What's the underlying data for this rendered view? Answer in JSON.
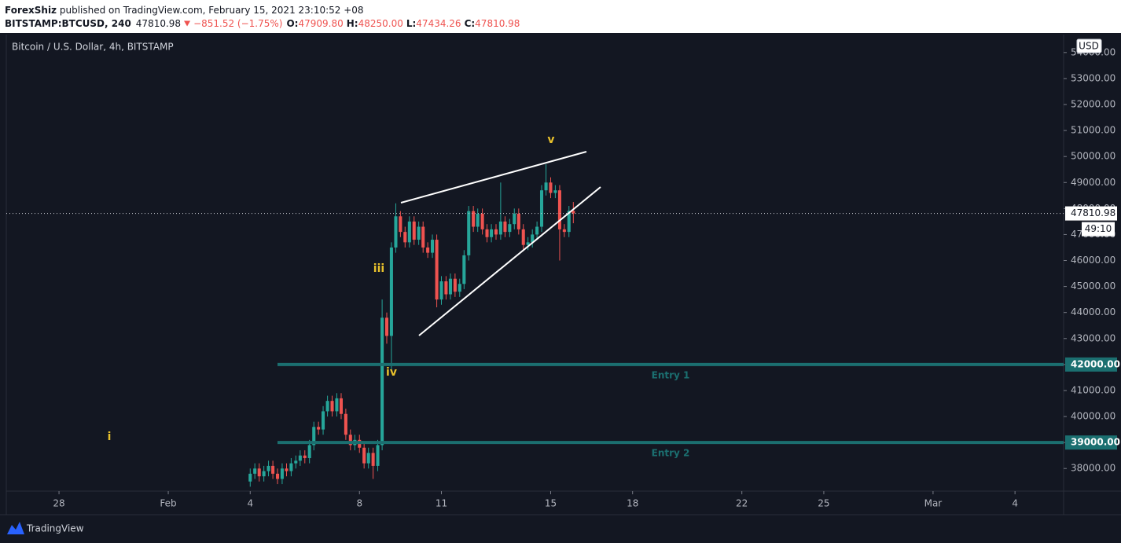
{
  "chart_data": {
    "type": "candlestick",
    "header": {
      "author": "ForexShiz",
      "published": " published on TradingView.com, February 15, 2021 23:10:52 +08",
      "symbol": "BITSTAMP:BTCUSD, 240",
      "last": "47810.98",
      "change": "−851.52 (−1.75%)",
      "ohlc": [
        {
          "label": "O:",
          "value": "47909.80"
        },
        {
          "label": "H:",
          "value": "48250.00"
        },
        {
          "label": "L:",
          "value": "47434.26"
        },
        {
          "label": "C:",
          "value": "47810.98"
        }
      ]
    },
    "legend": "Bitcoin / U.S. Dollar, 4h, BITSTAMP",
    "currency": "USD",
    "brand": "TradingView",
    "waves": [
      "i",
      "iii",
      "iv",
      "v"
    ],
    "up_color": "#26a69a",
    "down_color": "#ef5350",
    "xlim": [
      -1.93,
      36.78
    ],
    "ylim": [
      37130,
      54690
    ],
    "xticks": [
      {
        "value": 0,
        "label": "28"
      },
      {
        "value": 4,
        "label": "Feb"
      },
      {
        "value": 7,
        "label": "4"
      },
      {
        "value": 11,
        "label": "8"
      },
      {
        "value": 14,
        "label": "11"
      },
      {
        "value": 18,
        "label": "15"
      },
      {
        "value": 21,
        "label": "18"
      },
      {
        "value": 25,
        "label": "22"
      },
      {
        "value": 28,
        "label": "25"
      },
      {
        "value": 32,
        "label": "Mar"
      },
      {
        "value": 35,
        "label": "4"
      }
    ],
    "yticks": [
      {
        "value": 38000,
        "label": "38000.00"
      },
      {
        "value": 39000,
        "label": "39000.00"
      },
      {
        "value": 40000,
        "label": "40000.00"
      },
      {
        "value": 41000,
        "label": "41000.00"
      },
      {
        "value": 42000,
        "label": "42000.00"
      },
      {
        "value": 43000,
        "label": "43000.00"
      },
      {
        "value": 44000,
        "label": "44000.00"
      },
      {
        "value": 45000,
        "label": "45000.00"
      },
      {
        "value": 46000,
        "label": "46000.00"
      },
      {
        "value": 47000,
        "label": "47000.00"
      },
      {
        "value": 48000,
        "label": "48000.00"
      },
      {
        "value": 49000,
        "label": "49000.00"
      },
      {
        "value": 50000,
        "label": "50000.00"
      },
      {
        "value": 51000,
        "label": "51000.00"
      },
      {
        "value": 52000,
        "label": "52000.00"
      },
      {
        "value": 53000,
        "label": "53000.00"
      },
      {
        "value": 54000,
        "label": "54000.00"
      }
    ],
    "levels": [
      {
        "value": 42000,
        "price_label": "42000.00",
        "label": "Entry 1",
        "start": 8,
        "color": "#1b6f70"
      },
      {
        "value": 39000,
        "price_label": "39000.00",
        "label": "Entry 2",
        "start": 8,
        "color": "#1b6f70"
      }
    ],
    "last_price": {
      "value": 47810.98,
      "label": "47810.98",
      "countdown": "49:10"
    },
    "x": [
      7.0,
      7.17,
      7.33,
      7.5,
      7.67,
      7.83,
      8.0,
      8.17,
      8.33,
      8.5,
      8.67,
      8.83,
      9.0,
      9.17,
      9.33,
      9.5,
      9.67,
      9.83,
      10.0,
      10.17,
      10.33,
      10.5,
      10.67,
      10.83,
      11.0,
      11.17,
      11.33,
      11.5,
      11.67,
      11.83,
      12.0,
      12.17,
      12.33,
      12.5,
      12.67,
      12.83,
      13.0,
      13.17,
      13.33,
      13.5,
      13.67,
      13.83,
      14.0,
      14.17,
      14.33,
      14.5,
      14.67,
      14.83,
      15.0,
      15.17,
      15.33,
      15.5,
      15.67,
      15.83,
      16.0,
      16.17,
      16.33,
      16.5,
      16.67,
      16.83,
      17.0,
      17.17,
      17.33,
      17.5,
      17.67,
      17.83,
      18.0,
      18.17,
      18.33,
      18.5,
      18.67,
      18.83
    ],
    "open": [
      37500,
      37800,
      38000,
      37700,
      37900,
      38100,
      37800,
      37600,
      38000,
      37900,
      38200,
      38300,
      38500,
      38400,
      38900,
      39600,
      39500,
      40200,
      40600,
      40200,
      40700,
      40100,
      39300,
      38900,
      39100,
      38800,
      38200,
      38600,
      38100,
      38900,
      43800,
      43100,
      46500,
      47700,
      47100,
      46700,
      47500,
      46800,
      47300,
      46500,
      46300,
      46800,
      44500,
      45200,
      44700,
      45300,
      44800,
      45100,
      46200,
      47900,
      47300,
      47800,
      47200,
      46900,
      47200,
      47000,
      47500,
      47100,
      47400,
      47800,
      47200,
      46600,
      46700,
      47000,
      47300,
      48700,
      49000,
      48600,
      48700,
      47200,
      47100,
      47909.8
    ],
    "high": [
      38000,
      38200,
      38200,
      38100,
      38300,
      38300,
      38000,
      38200,
      38200,
      38400,
      38500,
      38700,
      38700,
      39100,
      39800,
      39800,
      40400,
      40800,
      40800,
      40900,
      40900,
      40300,
      39500,
      39300,
      39300,
      39000,
      38800,
      38800,
      39100,
      44500,
      44000,
      46700,
      48200,
      47900,
      47300,
      47700,
      47700,
      47500,
      47500,
      46700,
      47000,
      47000,
      45400,
      45400,
      45500,
      45500,
      45300,
      46400,
      48100,
      48100,
      48000,
      48000,
      47400,
      47400,
      47400,
      49000,
      47700,
      47600,
      48000,
      48000,
      47400,
      46900,
      47200,
      47500,
      48900,
      49700,
      49200,
      48900,
      48900,
      47400,
      48100,
      48250
    ],
    "low": [
      37300,
      37600,
      37500,
      37500,
      37700,
      37600,
      37400,
      37400,
      37700,
      37700,
      38000,
      38100,
      38200,
      38200,
      38700,
      39300,
      39300,
      40000,
      40000,
      40000,
      39900,
      39100,
      38700,
      38700,
      38600,
      38000,
      38000,
      37600,
      37900,
      38700,
      42800,
      41800,
      46300,
      46900,
      46500,
      46500,
      46600,
      46600,
      46300,
      46100,
      46100,
      44200,
      44300,
      44500,
      44500,
      44600,
      44600,
      44900,
      46000,
      47100,
      47100,
      47000,
      46700,
      46700,
      46800,
      46800,
      46900,
      46900,
      47200,
      47000,
      46400,
      46400,
      46500,
      46800,
      47100,
      48500,
      48400,
      48400,
      46000,
      46900,
      46900,
      47434.26
    ],
    "close": [
      37800,
      38000,
      37700,
      37900,
      38100,
      37800,
      37600,
      38000,
      37900,
      38200,
      38300,
      38500,
      38400,
      38900,
      39600,
      39500,
      40200,
      40600,
      40200,
      40700,
      40100,
      39300,
      38900,
      39100,
      38800,
      38200,
      38600,
      38100,
      38900,
      43800,
      43100,
      46500,
      47700,
      47100,
      46700,
      47500,
      46800,
      47300,
      46500,
      46300,
      46800,
      44500,
      45200,
      44700,
      45300,
      44800,
      45100,
      46200,
      47900,
      47300,
      47800,
      47200,
      46900,
      47200,
      47000,
      47500,
      47100,
      47400,
      47800,
      47200,
      46600,
      46700,
      47000,
      47300,
      48700,
      49000,
      48600,
      48700,
      47200,
      47100,
      47910,
      47810.98
    ]
  }
}
